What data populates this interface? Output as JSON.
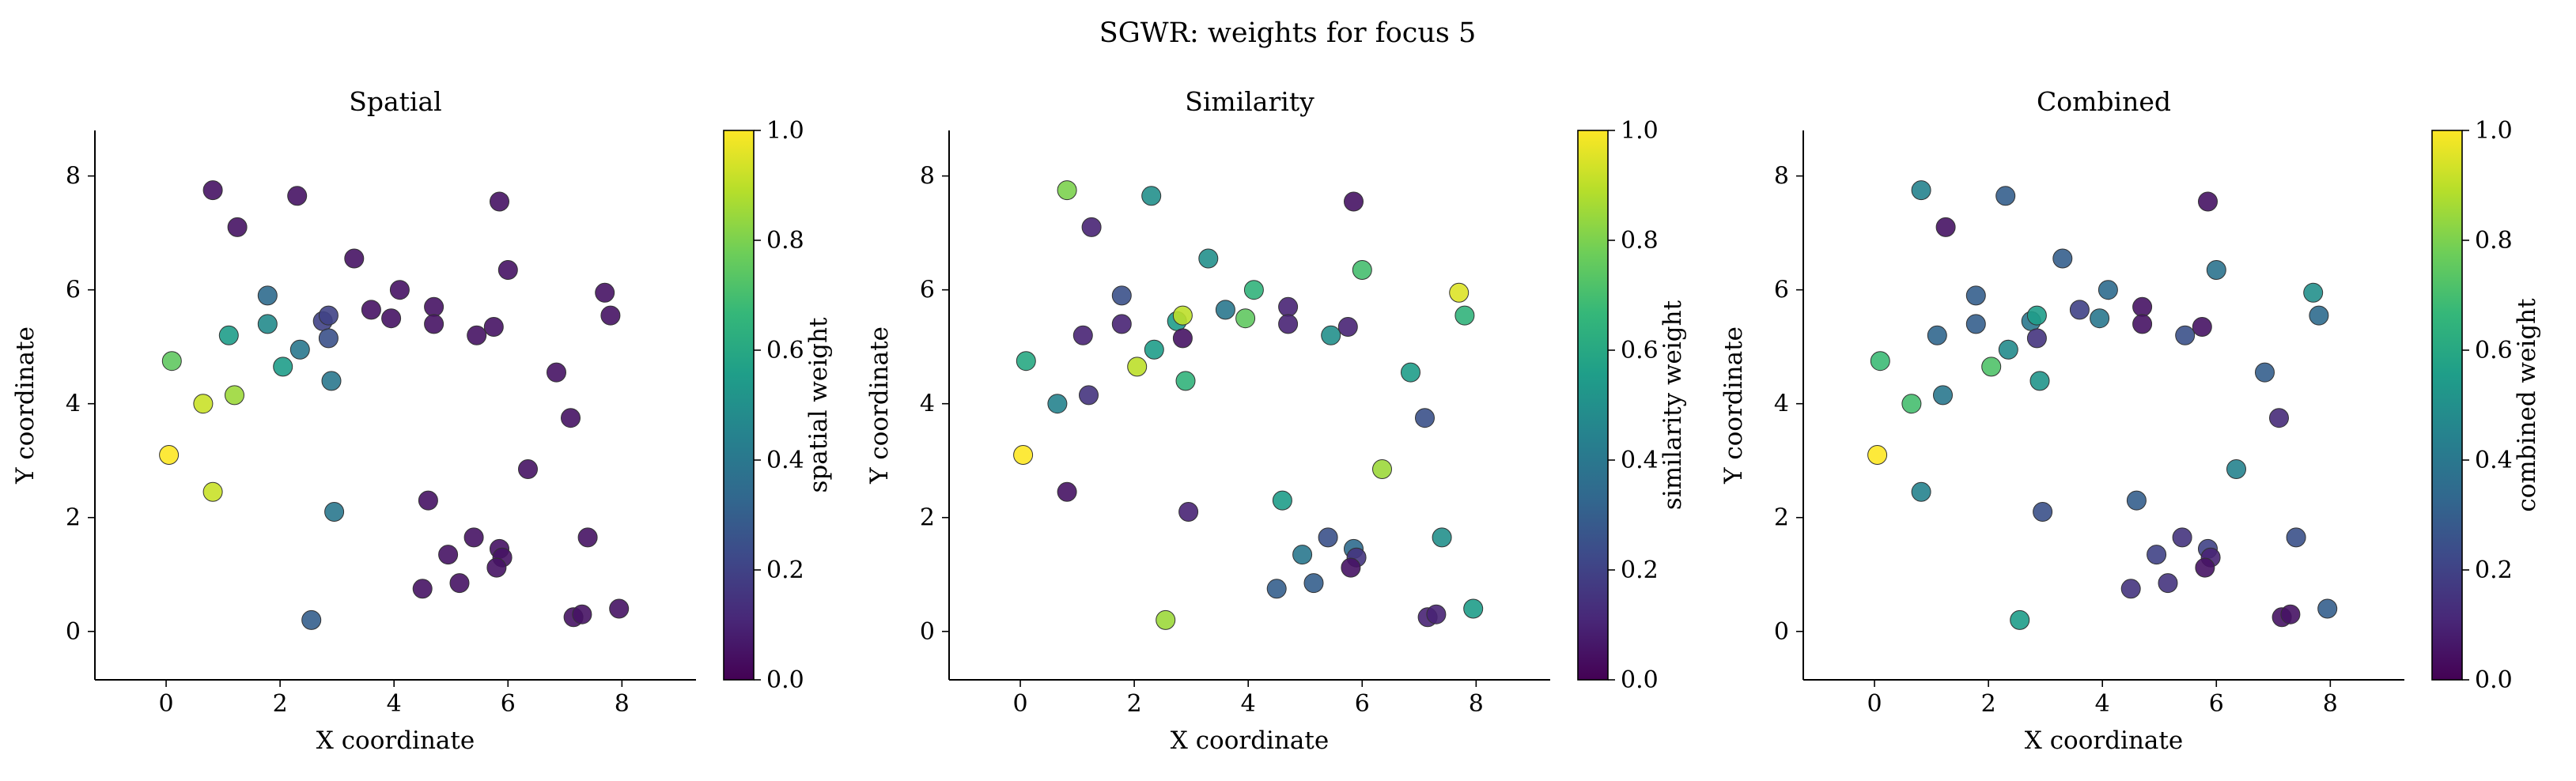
{
  "figure": {
    "title": "SGWR: weights for focus 5"
  },
  "colors": {
    "viridis": [
      "#440154",
      "#482878",
      "#3e4989",
      "#31688e",
      "#26828e",
      "#1f9e89",
      "#35b779",
      "#6ece58",
      "#b5de2b",
      "#fde725"
    ],
    "marker_edge": "#333333",
    "axis": "#000000"
  },
  "chart_data": [
    {
      "type": "scatter",
      "title": "Spatial",
      "xlabel": "X coordinate",
      "ylabel": "Y coordinate",
      "xlim": [
        -1.25,
        9.3
      ],
      "ylim": [
        -0.85,
        8.8
      ],
      "xticks": [
        0,
        2,
        4,
        6,
        8
      ],
      "yticks": [
        0,
        2,
        4,
        6,
        8
      ],
      "grid": false,
      "colorbar": {
        "label": "spatial weight",
        "range": [
          0,
          1
        ],
        "ticks": [
          "0.0",
          "0.2",
          "0.4",
          "0.6",
          "0.8",
          "1.0"
        ],
        "colormap": "viridis"
      },
      "points": [
        {
          "x": 0.82,
          "y": 7.75,
          "w": 0.05
        },
        {
          "x": 1.25,
          "y": 7.1,
          "w": 0.05
        },
        {
          "x": 2.3,
          "y": 7.65,
          "w": 0.05
        },
        {
          "x": 5.85,
          "y": 7.55,
          "w": 0.05
        },
        {
          "x": 3.3,
          "y": 6.55,
          "w": 0.05
        },
        {
          "x": 4.1,
          "y": 6.0,
          "w": 0.05
        },
        {
          "x": 6.0,
          "y": 6.35,
          "w": 0.05
        },
        {
          "x": 7.7,
          "y": 5.95,
          "w": 0.05
        },
        {
          "x": 3.6,
          "y": 5.65,
          "w": 0.05
        },
        {
          "x": 3.95,
          "y": 5.5,
          "w": 0.05
        },
        {
          "x": 4.7,
          "y": 5.7,
          "w": 0.05
        },
        {
          "x": 4.7,
          "y": 5.4,
          "w": 0.05
        },
        {
          "x": 5.45,
          "y": 5.2,
          "w": 0.05
        },
        {
          "x": 5.75,
          "y": 5.35,
          "w": 0.05
        },
        {
          "x": 7.8,
          "y": 5.55,
          "w": 0.05
        },
        {
          "x": 6.85,
          "y": 4.55,
          "w": 0.05
        },
        {
          "x": 7.1,
          "y": 3.75,
          "w": 0.05
        },
        {
          "x": 6.35,
          "y": 2.85,
          "w": 0.05
        },
        {
          "x": 4.6,
          "y": 2.3,
          "w": 0.05
        },
        {
          "x": 4.95,
          "y": 1.35,
          "w": 0.05
        },
        {
          "x": 5.4,
          "y": 1.65,
          "w": 0.05
        },
        {
          "x": 5.85,
          "y": 1.45,
          "w": 0.05
        },
        {
          "x": 5.9,
          "y": 1.3,
          "w": 0.05
        },
        {
          "x": 5.8,
          "y": 1.12,
          "w": 0.05
        },
        {
          "x": 4.5,
          "y": 0.75,
          "w": 0.05
        },
        {
          "x": 5.15,
          "y": 0.85,
          "w": 0.05
        },
        {
          "x": 7.4,
          "y": 1.65,
          "w": 0.05
        },
        {
          "x": 7.15,
          "y": 0.25,
          "w": 0.05
        },
        {
          "x": 7.3,
          "y": 0.3,
          "w": 0.05
        },
        {
          "x": 7.95,
          "y": 0.4,
          "w": 0.05
        },
        {
          "x": 2.75,
          "y": 5.45,
          "w": 0.2
        },
        {
          "x": 2.85,
          "y": 5.55,
          "w": 0.2
        },
        {
          "x": 2.85,
          "y": 5.15,
          "w": 0.25
        },
        {
          "x": 1.78,
          "y": 5.9,
          "w": 0.35
        },
        {
          "x": 2.55,
          "y": 0.2,
          "w": 0.3
        },
        {
          "x": 2.95,
          "y": 2.1,
          "w": 0.4
        },
        {
          "x": 2.35,
          "y": 4.95,
          "w": 0.4
        },
        {
          "x": 2.9,
          "y": 4.4,
          "w": 0.4
        },
        {
          "x": 1.78,
          "y": 5.4,
          "w": 0.48
        },
        {
          "x": 1.1,
          "y": 5.2,
          "w": 0.55
        },
        {
          "x": 2.05,
          "y": 4.65,
          "w": 0.55
        },
        {
          "x": 0.1,
          "y": 4.75,
          "w": 0.75
        },
        {
          "x": 1.2,
          "y": 4.15,
          "w": 0.85
        },
        {
          "x": 0.65,
          "y": 4.0,
          "w": 0.92
        },
        {
          "x": 0.82,
          "y": 2.45,
          "w": 0.92
        },
        {
          "x": 0.05,
          "y": 3.1,
          "w": 1.0
        }
      ]
    },
    {
      "type": "scatter",
      "title": "Similarity",
      "xlabel": "X coordinate",
      "ylabel": "Y coordinate",
      "xlim": [
        -1.25,
        9.3
      ],
      "ylim": [
        -0.85,
        8.8
      ],
      "xticks": [
        0,
        2,
        4,
        6,
        8
      ],
      "yticks": [
        0,
        2,
        4,
        6,
        8
      ],
      "grid": false,
      "colorbar": {
        "label": "similarity weight",
        "range": [
          0,
          1
        ],
        "ticks": [
          "0.0",
          "0.2",
          "0.4",
          "0.6",
          "0.8",
          "1.0"
        ],
        "colormap": "viridis"
      },
      "points": [
        {
          "x": 0.82,
          "y": 7.75,
          "w": 0.8
        },
        {
          "x": 1.25,
          "y": 7.1,
          "w": 0.1
        },
        {
          "x": 2.3,
          "y": 7.65,
          "w": 0.5
        },
        {
          "x": 5.85,
          "y": 7.55,
          "w": 0.05
        },
        {
          "x": 3.3,
          "y": 6.55,
          "w": 0.5
        },
        {
          "x": 4.1,
          "y": 6.0,
          "w": 0.65
        },
        {
          "x": 6.0,
          "y": 6.35,
          "w": 0.7
        },
        {
          "x": 7.7,
          "y": 5.95,
          "w": 0.95
        },
        {
          "x": 3.6,
          "y": 5.65,
          "w": 0.4
        },
        {
          "x": 3.95,
          "y": 5.5,
          "w": 0.75
        },
        {
          "x": 4.7,
          "y": 5.7,
          "w": 0.1
        },
        {
          "x": 4.7,
          "y": 5.4,
          "w": 0.1
        },
        {
          "x": 5.45,
          "y": 5.2,
          "w": 0.5
        },
        {
          "x": 5.75,
          "y": 5.35,
          "w": 0.1
        },
        {
          "x": 7.8,
          "y": 5.55,
          "w": 0.65
        },
        {
          "x": 6.85,
          "y": 4.55,
          "w": 0.55
        },
        {
          "x": 7.1,
          "y": 3.75,
          "w": 0.25
        },
        {
          "x": 6.35,
          "y": 2.85,
          "w": 0.85
        },
        {
          "x": 4.6,
          "y": 2.3,
          "w": 0.55
        },
        {
          "x": 4.95,
          "y": 1.35,
          "w": 0.4
        },
        {
          "x": 5.4,
          "y": 1.65,
          "w": 0.25
        },
        {
          "x": 5.85,
          "y": 1.45,
          "w": 0.35
        },
        {
          "x": 5.9,
          "y": 1.3,
          "w": 0.15
        },
        {
          "x": 5.8,
          "y": 1.12,
          "w": 0.05
        },
        {
          "x": 4.5,
          "y": 0.75,
          "w": 0.3
        },
        {
          "x": 5.15,
          "y": 0.85,
          "w": 0.3
        },
        {
          "x": 7.4,
          "y": 1.65,
          "w": 0.5
        },
        {
          "x": 7.15,
          "y": 0.25,
          "w": 0.1
        },
        {
          "x": 7.3,
          "y": 0.3,
          "w": 0.1
        },
        {
          "x": 7.95,
          "y": 0.4,
          "w": 0.55
        },
        {
          "x": 2.75,
          "y": 5.45,
          "w": 0.55
        },
        {
          "x": 2.85,
          "y": 5.55,
          "w": 0.9
        },
        {
          "x": 2.85,
          "y": 5.15,
          "w": 0.05
        },
        {
          "x": 1.78,
          "y": 5.9,
          "w": 0.25
        },
        {
          "x": 2.55,
          "y": 0.2,
          "w": 0.85
        },
        {
          "x": 2.95,
          "y": 2.1,
          "w": 0.1
        },
        {
          "x": 2.35,
          "y": 4.95,
          "w": 0.55
        },
        {
          "x": 2.9,
          "y": 4.4,
          "w": 0.65
        },
        {
          "x": 1.78,
          "y": 5.4,
          "w": 0.1
        },
        {
          "x": 1.1,
          "y": 5.2,
          "w": 0.1
        },
        {
          "x": 2.05,
          "y": 4.65,
          "w": 0.9
        },
        {
          "x": 0.1,
          "y": 4.75,
          "w": 0.6
        },
        {
          "x": 1.2,
          "y": 4.15,
          "w": 0.15
        },
        {
          "x": 0.65,
          "y": 4.0,
          "w": 0.45
        },
        {
          "x": 0.82,
          "y": 2.45,
          "w": 0.05
        },
        {
          "x": 0.05,
          "y": 3.1,
          "w": 1.0
        }
      ]
    },
    {
      "type": "scatter",
      "title": "Combined",
      "xlabel": "X coordinate",
      "ylabel": "Y coordinate",
      "xlim": [
        -1.25,
        9.3
      ],
      "ylim": [
        -0.85,
        8.8
      ],
      "xticks": [
        0,
        2,
        4,
        6,
        8
      ],
      "yticks": [
        0,
        2,
        4,
        6,
        8
      ],
      "grid": false,
      "colorbar": {
        "label": "combined weight",
        "range": [
          0,
          1
        ],
        "ticks": [
          "0.0",
          "0.2",
          "0.4",
          "0.6",
          "0.8",
          "1.0"
        ],
        "colormap": "viridis"
      },
      "points": [
        {
          "x": 0.82,
          "y": 7.75,
          "w": 0.45
        },
        {
          "x": 1.25,
          "y": 7.1,
          "w": 0.05
        },
        {
          "x": 2.3,
          "y": 7.65,
          "w": 0.3
        },
        {
          "x": 5.85,
          "y": 7.55,
          "w": 0.05
        },
        {
          "x": 3.3,
          "y": 6.55,
          "w": 0.3
        },
        {
          "x": 4.1,
          "y": 6.0,
          "w": 0.35
        },
        {
          "x": 6.0,
          "y": 6.35,
          "w": 0.38
        },
        {
          "x": 7.7,
          "y": 5.95,
          "w": 0.5
        },
        {
          "x": 3.6,
          "y": 5.65,
          "w": 0.2
        },
        {
          "x": 3.95,
          "y": 5.5,
          "w": 0.4
        },
        {
          "x": 4.7,
          "y": 5.7,
          "w": 0.05
        },
        {
          "x": 4.7,
          "y": 5.4,
          "w": 0.05
        },
        {
          "x": 5.45,
          "y": 5.2,
          "w": 0.25
        },
        {
          "x": 5.75,
          "y": 5.35,
          "w": 0.05
        },
        {
          "x": 7.8,
          "y": 5.55,
          "w": 0.35
        },
        {
          "x": 6.85,
          "y": 4.55,
          "w": 0.3
        },
        {
          "x": 7.1,
          "y": 3.75,
          "w": 0.12
        },
        {
          "x": 6.35,
          "y": 2.85,
          "w": 0.45
        },
        {
          "x": 4.6,
          "y": 2.3,
          "w": 0.3
        },
        {
          "x": 4.95,
          "y": 1.35,
          "w": 0.2
        },
        {
          "x": 5.4,
          "y": 1.65,
          "w": 0.15
        },
        {
          "x": 5.85,
          "y": 1.45,
          "w": 0.2
        },
        {
          "x": 5.9,
          "y": 1.3,
          "w": 0.1
        },
        {
          "x": 5.8,
          "y": 1.12,
          "w": 0.05
        },
        {
          "x": 4.5,
          "y": 0.75,
          "w": 0.15
        },
        {
          "x": 5.15,
          "y": 0.85,
          "w": 0.15
        },
        {
          "x": 7.4,
          "y": 1.65,
          "w": 0.25
        },
        {
          "x": 7.15,
          "y": 0.25,
          "w": 0.05
        },
        {
          "x": 7.3,
          "y": 0.3,
          "w": 0.05
        },
        {
          "x": 7.95,
          "y": 0.4,
          "w": 0.3
        },
        {
          "x": 2.75,
          "y": 5.45,
          "w": 0.4
        },
        {
          "x": 2.85,
          "y": 5.55,
          "w": 0.55
        },
        {
          "x": 2.85,
          "y": 5.15,
          "w": 0.15
        },
        {
          "x": 1.78,
          "y": 5.9,
          "w": 0.3
        },
        {
          "x": 2.55,
          "y": 0.2,
          "w": 0.55
        },
        {
          "x": 2.95,
          "y": 2.1,
          "w": 0.25
        },
        {
          "x": 2.35,
          "y": 4.95,
          "w": 0.48
        },
        {
          "x": 2.9,
          "y": 4.4,
          "w": 0.52
        },
        {
          "x": 1.78,
          "y": 5.4,
          "w": 0.3
        },
        {
          "x": 1.1,
          "y": 5.2,
          "w": 0.33
        },
        {
          "x": 2.05,
          "y": 4.65,
          "w": 0.72
        },
        {
          "x": 0.1,
          "y": 4.75,
          "w": 0.68
        },
        {
          "x": 1.2,
          "y": 4.15,
          "w": 0.4
        },
        {
          "x": 0.65,
          "y": 4.0,
          "w": 0.7
        },
        {
          "x": 0.82,
          "y": 2.45,
          "w": 0.45
        },
        {
          "x": 0.05,
          "y": 3.1,
          "w": 1.0
        }
      ]
    }
  ]
}
